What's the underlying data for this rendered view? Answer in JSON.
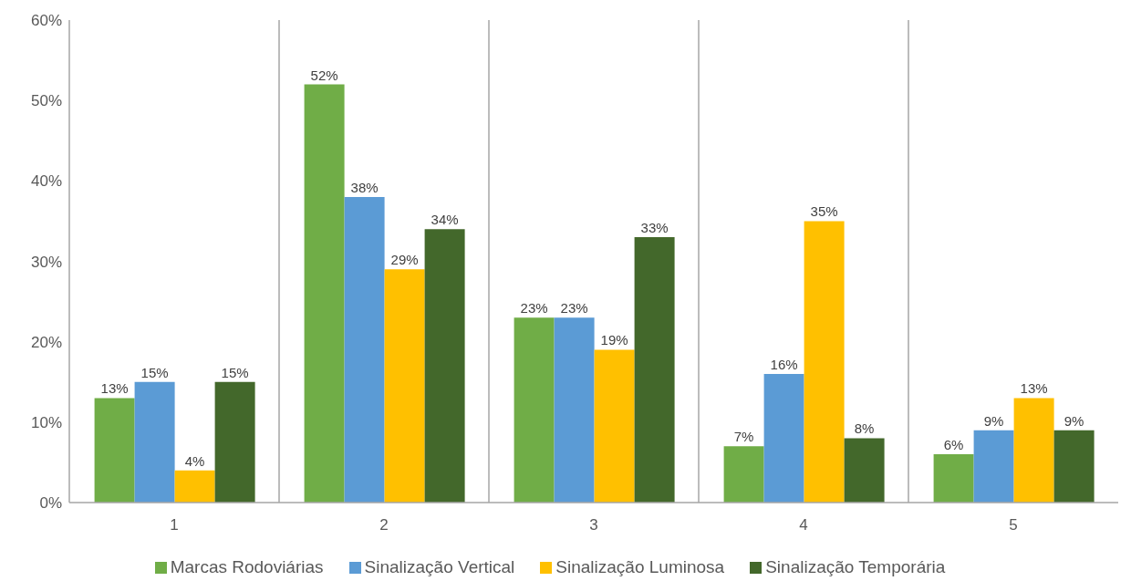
{
  "chart_data": {
    "type": "bar",
    "categories": [
      "1",
      "2",
      "3",
      "4",
      "5"
    ],
    "series": [
      {
        "name": "Marcas Rodoviárias",
        "color": "#70ad47",
        "values": [
          13,
          52,
          23,
          7,
          6
        ],
        "value_labels": [
          "13%",
          "52%",
          "23%",
          "7%",
          "6%"
        ]
      },
      {
        "name": "Sinalização Vertical",
        "color": "#5b9bd5",
        "values": [
          15,
          38,
          23,
          16,
          9
        ],
        "value_labels": [
          "15%",
          "38%",
          "23%",
          "16%",
          "9%"
        ]
      },
      {
        "name": "Sinalização Luminosa",
        "color": "#ffc000",
        "values": [
          4,
          29,
          19,
          35,
          13
        ],
        "value_labels": [
          "4%",
          "29%",
          "19%",
          "35%",
          "13%"
        ]
      },
      {
        "name": "Sinalização Temporária",
        "color": "#43682b",
        "values": [
          15,
          34,
          33,
          8,
          9
        ],
        "value_labels": [
          "15%",
          "34%",
          "33%",
          "8%",
          "9%"
        ]
      }
    ],
    "ylim": [
      0,
      60
    ],
    "yticks": [
      {
        "value": 0,
        "label": "0%"
      },
      {
        "value": 10,
        "label": "10%"
      },
      {
        "value": 20,
        "label": "20%"
      },
      {
        "value": 30,
        "label": "30%"
      },
      {
        "value": 40,
        "label": "40%"
      },
      {
        "value": 50,
        "label": "50%"
      },
      {
        "value": 60,
        "label": "60%"
      }
    ],
    "grid": "x",
    "legend": "bottom"
  }
}
